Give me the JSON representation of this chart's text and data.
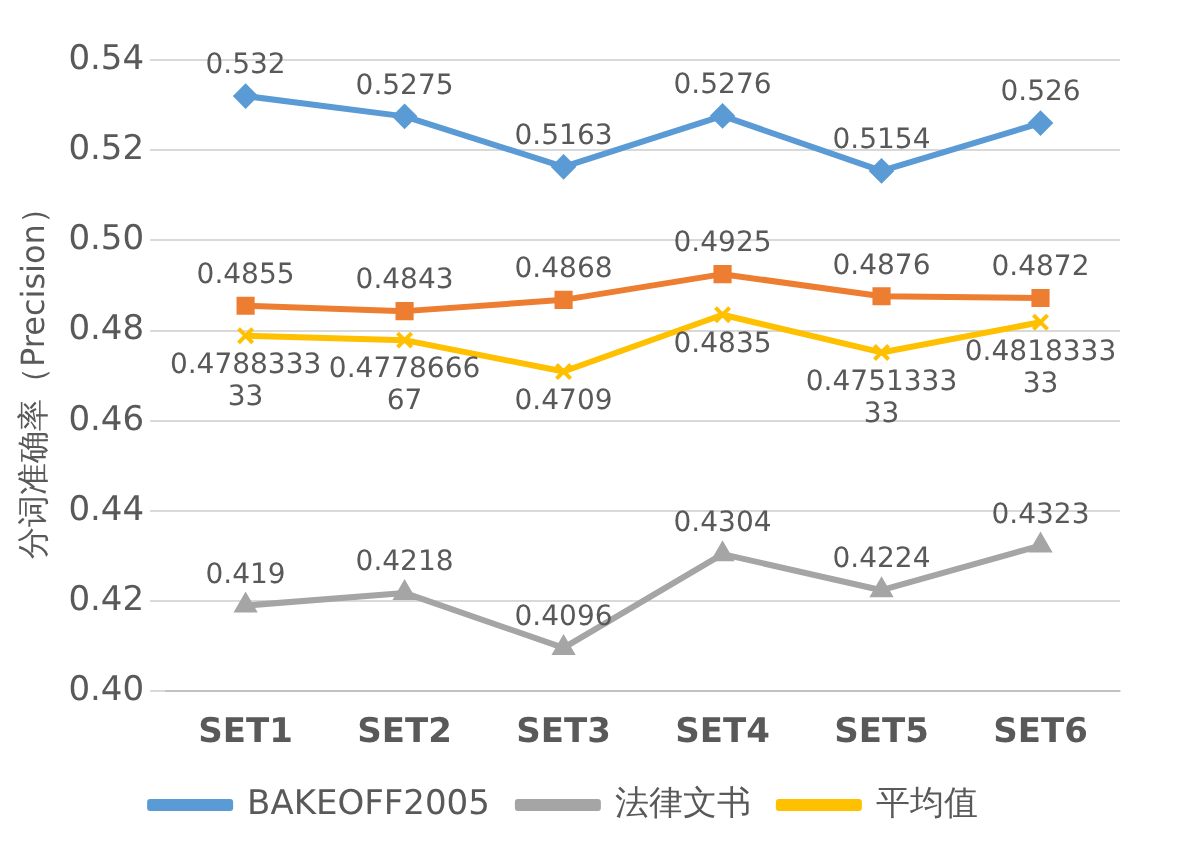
{
  "chart_data": {
    "type": "line",
    "ylabel": "分词准确率（Precision）",
    "categories": [
      "SET1",
      "SET2",
      "SET3",
      "SET4",
      "SET5",
      "SET6"
    ],
    "ylim": [
      0.4,
      0.54
    ],
    "yticks": [
      {
        "value": 0.4,
        "label": "0.40"
      },
      {
        "value": 0.42,
        "label": "0.42"
      },
      {
        "value": 0.44,
        "label": "0.44"
      },
      {
        "value": 0.46,
        "label": "0.46"
      },
      {
        "value": 0.48,
        "label": "0.48"
      },
      {
        "value": 0.5,
        "label": "0.50"
      },
      {
        "value": 0.52,
        "label": "0.52"
      },
      {
        "value": 0.54,
        "label": "0.54"
      }
    ],
    "grid": "y",
    "legend": "bottom",
    "data_labels": true,
    "series": [
      {
        "name": "BAKEOFF2005",
        "color": "#5b9bd5",
        "marker": "diamond",
        "values": [
          0.532,
          0.5275,
          0.5163,
          0.5276,
          0.5154,
          0.526
        ]
      },
      {
        "color": "#ed7d31",
        "marker": "square",
        "values": [
          0.4855,
          0.4843,
          0.4868,
          0.4925,
          0.4876,
          0.4872
        ]
      },
      {
        "name": "法律文书",
        "color": "#a5a5a5",
        "marker": "triangle",
        "values": [
          0.419,
          0.4218,
          0.4096,
          0.4304,
          0.4224,
          0.4323
        ]
      },
      {
        "name": "平均值",
        "color": "#ffc000",
        "marker": "cross",
        "values": [
          0.478833333,
          0.477866667,
          0.4709,
          0.4835,
          0.475133333,
          0.481833333
        ]
      }
    ]
  }
}
